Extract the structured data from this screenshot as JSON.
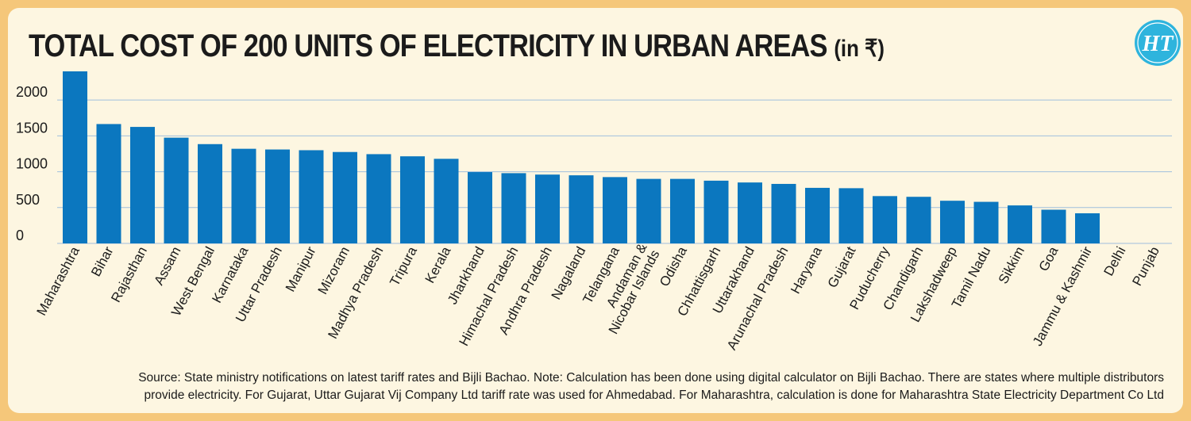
{
  "title_main": "TOTAL COST OF 200 UNITS OF ELECTRICITY IN URBAN AREAS",
  "title_unit": "(in ₹)",
  "logo_text": "HT",
  "source_line1": "Source: State ministry notifications on latest tariff rates and Bijli Bachao. Note: Calculation has been done using digital calculator on Bijli Bachao. There are states where multiple distributors",
  "source_line2": "provide electricity. For Gujarat, Uttar Gujarat Vij Company Ltd tariff rate was used for Ahmedabad. For Maharashtra, calculation is done for Maharashtra State Electricity Department Co Ltd",
  "colors": {
    "bar": "#0b77bf",
    "grid": "#9fbfdd",
    "background": "#fdf6e1",
    "border": "#f5c77a",
    "logo": "#2eb4dd"
  },
  "chart_data": {
    "type": "bar",
    "title": "TOTAL COST OF 200 UNITS OF ELECTRICITY IN URBAN AREAS (in ₹)",
    "xlabel": "",
    "ylabel": "",
    "ylim": [
      0,
      2400
    ],
    "yticks": [
      0,
      500,
      1000,
      1500,
      2000
    ],
    "grid": true,
    "categories": [
      "Maharashtra",
      "Bihar",
      "Rajasthan",
      "Assam",
      "West Bengal",
      "Karnataka",
      "Uttar Pradesh",
      "Manipur",
      "Mizoram",
      "Madhya Pradesh",
      "Tripura",
      "Kerala",
      "Jharkhand",
      "Himachal Pradesh",
      "Andhra Pradesh",
      "Nagaland",
      "Telangana",
      "Andaman & Nicobar Islands",
      "Odisha",
      "Chhattisgarh",
      "Uttarakhand",
      "Arunachal Pradesh",
      "Haryana",
      "Gujarat",
      "Puducherry",
      "Chandigarh",
      "Lakshadweep",
      "Tamil Nadu",
      "Sikkim",
      "Goa",
      "Jammu & Kashmir",
      "Delhi",
      "Punjab"
    ],
    "label_lines": [
      [
        "Maharashtra"
      ],
      [
        "Bihar"
      ],
      [
        "Rajasthan"
      ],
      [
        "Assam"
      ],
      [
        "West Bengal"
      ],
      [
        "Karnataka"
      ],
      [
        "Uttar Pradesh"
      ],
      [
        "Manipur"
      ],
      [
        "Mizoram"
      ],
      [
        "Madhya Pradesh"
      ],
      [
        "Tripura"
      ],
      [
        "Kerala"
      ],
      [
        "Jharkhand"
      ],
      [
        "Himachal Pradesh"
      ],
      [
        "Andhra Pradesh"
      ],
      [
        "Nagaland"
      ],
      [
        "Telangana"
      ],
      [
        "Andaman &",
        "Nicobar Islands"
      ],
      [
        "Odisha"
      ],
      [
        "Chhattisgarh"
      ],
      [
        "Uttarakhand"
      ],
      [
        "Arunachal Pradesh"
      ],
      [
        "Haryana"
      ],
      [
        "Gujarat"
      ],
      [
        "Puducherry"
      ],
      [
        "Chandigarh"
      ],
      [
        "Lakshadweep"
      ],
      [
        "Tamil Nadu"
      ],
      [
        "Sikkim"
      ],
      [
        "Goa"
      ],
      [
        "Jammu & Kashmir"
      ],
      [
        "Delhi"
      ],
      [
        "Punjab"
      ]
    ],
    "values": [
      2400,
      1665,
      1625,
      1475,
      1385,
      1320,
      1310,
      1300,
      1275,
      1245,
      1215,
      1180,
      995,
      980,
      960,
      950,
      925,
      900,
      900,
      875,
      850,
      830,
      775,
      770,
      660,
      650,
      595,
      580,
      530,
      470,
      420,
      0,
      0
    ]
  }
}
